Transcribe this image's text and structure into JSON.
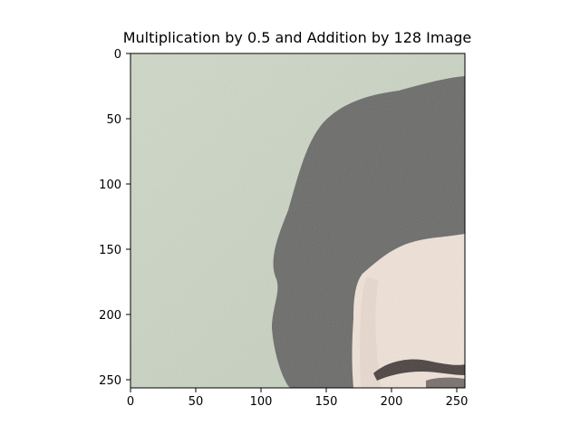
{
  "figure": {
    "title": "Multiplication by 0.5 and Addition by 128 Image"
  },
  "axes": {
    "x_ticks": [
      "0",
      "50",
      "100",
      "150",
      "200",
      "250"
    ],
    "y_ticks": [
      "0",
      "50",
      "100",
      "150",
      "200",
      "250"
    ]
  },
  "image": {
    "subject": "cropped photo of a person's hair and forehead",
    "colors": {
      "background": "#c9d3c2",
      "hair": "#6c6c6a",
      "skin": "#efe2d8",
      "brow": "#4a4240"
    }
  }
}
